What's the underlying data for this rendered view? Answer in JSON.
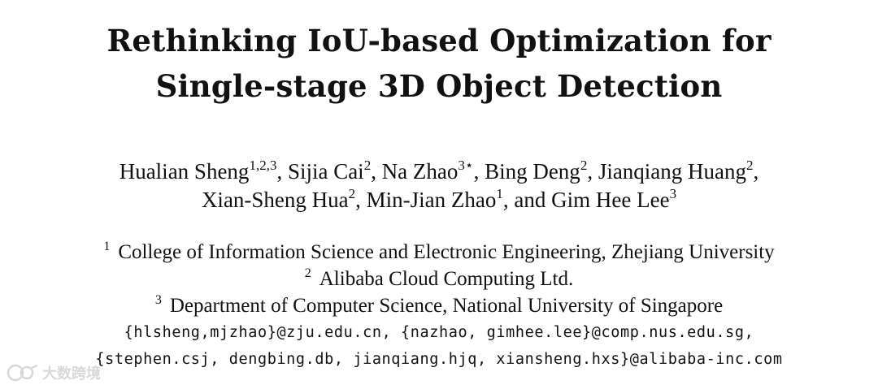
{
  "title": {
    "line1": "Rethinking IoU-based Optimization for",
    "line2": "Single-stage 3D Object Detection"
  },
  "authors": [
    {
      "name": "Hualian Sheng",
      "sup": "1,2,3",
      "sep": ", "
    },
    {
      "name": "Sijia Cai",
      "sup": "2",
      "sep": ", "
    },
    {
      "name": "Na Zhao",
      "sup": "3⋆",
      "sep": ", "
    },
    {
      "name": "Bing Deng",
      "sup": "2",
      "sep": ", "
    },
    {
      "name": "Jianqiang Huang",
      "sup": "2",
      "sep": ","
    },
    {
      "name": "Xian-Sheng Hua",
      "sup": "2",
      "sep": ", "
    },
    {
      "name": "Min-Jian Zhao",
      "sup": "1",
      "sep": ", and "
    },
    {
      "name": "Gim Hee Lee",
      "sup": "3",
      "sep": ""
    }
  ],
  "affiliations": [
    {
      "num": "1",
      "text": "College of Information Science and Electronic Engineering, Zhejiang University"
    },
    {
      "num": "2",
      "text": "Alibaba Cloud Computing Ltd."
    },
    {
      "num": "3",
      "text": "Department of Computer Science, National University of Singapore"
    }
  ],
  "emails": {
    "line1": "{hlsheng,mjzhao}@zju.edu.cn, {nazhao, gimhee.lee}@comp.nus.edu.sg,",
    "line2": "{stephen.csj, dengbing.db, jianqiang.hjq, xiansheng.hxs}@alibaba-inc.com"
  },
  "watermark": {
    "text": "大数跨境",
    "icon": "watermark-logo-icon"
  }
}
